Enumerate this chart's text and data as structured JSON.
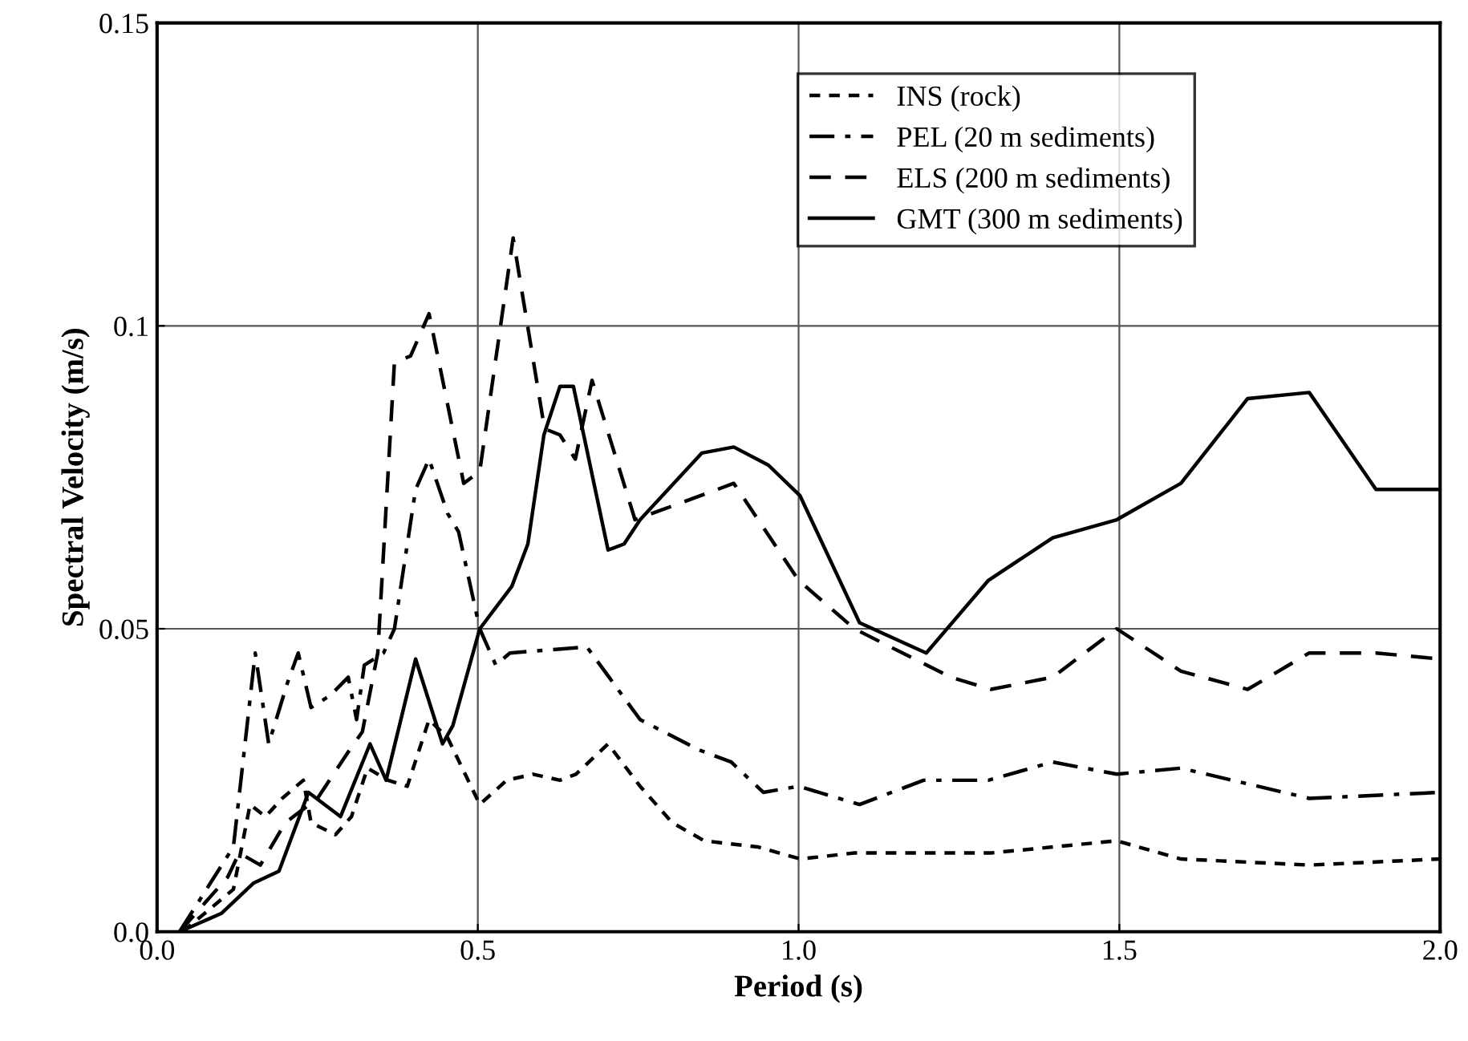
{
  "chart_data": {
    "type": "line",
    "xlabel": "Period (s)",
    "ylabel": "Spectral Velocity (m/s)",
    "xlim": [
      0,
      2
    ],
    "ylim": [
      0,
      0.15
    ],
    "xticks": [
      {
        "value": 0,
        "label": "0.0"
      },
      {
        "value": 0.5,
        "label": "0.5"
      },
      {
        "value": 1,
        "label": "1.0"
      },
      {
        "value": 1.5,
        "label": "1.5"
      },
      {
        "value": 2,
        "label": "2.0"
      }
    ],
    "yticks": [
      {
        "value": 0,
        "label": "0.0"
      },
      0.05,
      0.1,
      0.15
    ],
    "grid": true,
    "legend": "top right",
    "marker": "none",
    "series": [
      {
        "name": "INS (rock)",
        "color": "#000000",
        "line_style": "short_dashed",
        "x": [
          0.04,
          0.119,
          0.145,
          0.169,
          0.195,
          0.228,
          0.24,
          0.278,
          0.303,
          0.328,
          0.36,
          0.39,
          0.424,
          0.453,
          0.503,
          0.545,
          0.586,
          0.628,
          0.653,
          0.703,
          0.753,
          0.803,
          0.853,
          0.936,
          1.003,
          1.087,
          1.3,
          1.496,
          1.596,
          1.796,
          2.0
        ],
        "values": [
          0,
          0.007,
          0.021,
          0.019,
          0.022,
          0.025,
          0.018,
          0.016,
          0.019,
          0.027,
          0.025,
          0.024,
          0.035,
          0.032,
          0.021,
          0.025,
          0.026,
          0.025,
          0.026,
          0.031,
          0.024,
          0.018,
          0.015,
          0.014,
          0.012,
          0.013,
          0.013,
          0.015,
          0.012,
          0.011,
          0.012
        ]
      },
      {
        "name": "PEL (20 m sediments)",
        "color": "#000000",
        "line_style": "dashdot",
        "x": [
          0.035,
          0.119,
          0.153,
          0.174,
          0.203,
          0.22,
          0.24,
          0.27,
          0.298,
          0.311,
          0.323,
          0.353,
          0.37,
          0.403,
          0.424,
          0.453,
          0.47,
          0.503,
          0.528,
          0.55,
          0.67,
          0.753,
          0.845,
          0.895,
          0.945,
          1.0,
          1.095,
          1.195,
          1.296,
          1.396,
          1.496,
          1.596,
          1.796,
          2.0
        ],
        "values": [
          0,
          0.014,
          0.046,
          0.031,
          0.041,
          0.046,
          0.037,
          0.039,
          0.042,
          0.035,
          0.044,
          0.046,
          0.05,
          0.073,
          0.078,
          0.069,
          0.066,
          0.05,
          0.044,
          0.046,
          0.047,
          0.035,
          0.03,
          0.028,
          0.023,
          0.024,
          0.021,
          0.025,
          0.025,
          0.028,
          0.026,
          0.027,
          0.022,
          0.023
        ]
      },
      {
        "name": "ELS (200 m sediments)",
        "color": "#000000",
        "line_style": "dashed",
        "x": [
          0.035,
          0.11,
          0.128,
          0.161,
          0.2,
          0.25,
          0.3,
          0.32,
          0.344,
          0.37,
          0.395,
          0.424,
          0.478,
          0.503,
          0.555,
          0.604,
          0.628,
          0.652,
          0.678,
          0.745,
          0.899,
          1.0,
          1.087,
          1.237,
          1.3,
          1.396,
          1.496,
          1.596,
          1.7,
          1.796,
          1.9,
          2.0
        ],
        "values": [
          0,
          0.009,
          0.013,
          0.011,
          0.018,
          0.022,
          0.03,
          0.033,
          0.046,
          0.094,
          0.095,
          0.102,
          0.074,
          0.076,
          0.1145,
          0.083,
          0.082,
          0.078,
          0.091,
          0.068,
          0.074,
          0.058,
          0.05,
          0.042,
          0.04,
          0.042,
          0.05,
          0.043,
          0.04,
          0.046,
          0.046,
          0.045
        ]
      },
      {
        "name": "GMT (300 m sediments)",
        "color": "#000000",
        "line_style": "solid",
        "x": [
          0.035,
          0.1,
          0.15,
          0.19,
          0.236,
          0.286,
          0.332,
          0.357,
          0.403,
          0.445,
          0.461,
          0.503,
          0.553,
          0.578,
          0.603,
          0.628,
          0.649,
          0.703,
          0.728,
          0.753,
          0.849,
          0.899,
          0.953,
          1.002,
          1.095,
          1.199,
          1.296,
          1.396,
          1.496,
          1.596,
          1.7,
          1.796,
          1.9,
          2.0
        ],
        "values": [
          0,
          0.003,
          0.008,
          0.01,
          0.023,
          0.019,
          0.031,
          0.025,
          0.045,
          0.031,
          0.034,
          0.05,
          0.057,
          0.064,
          0.082,
          0.09,
          0.09,
          0.063,
          0.064,
          0.068,
          0.079,
          0.08,
          0.077,
          0.072,
          0.051,
          0.046,
          0.058,
          0.065,
          0.068,
          0.074,
          0.088,
          0.089,
          0.073,
          0.073
        ]
      }
    ]
  }
}
